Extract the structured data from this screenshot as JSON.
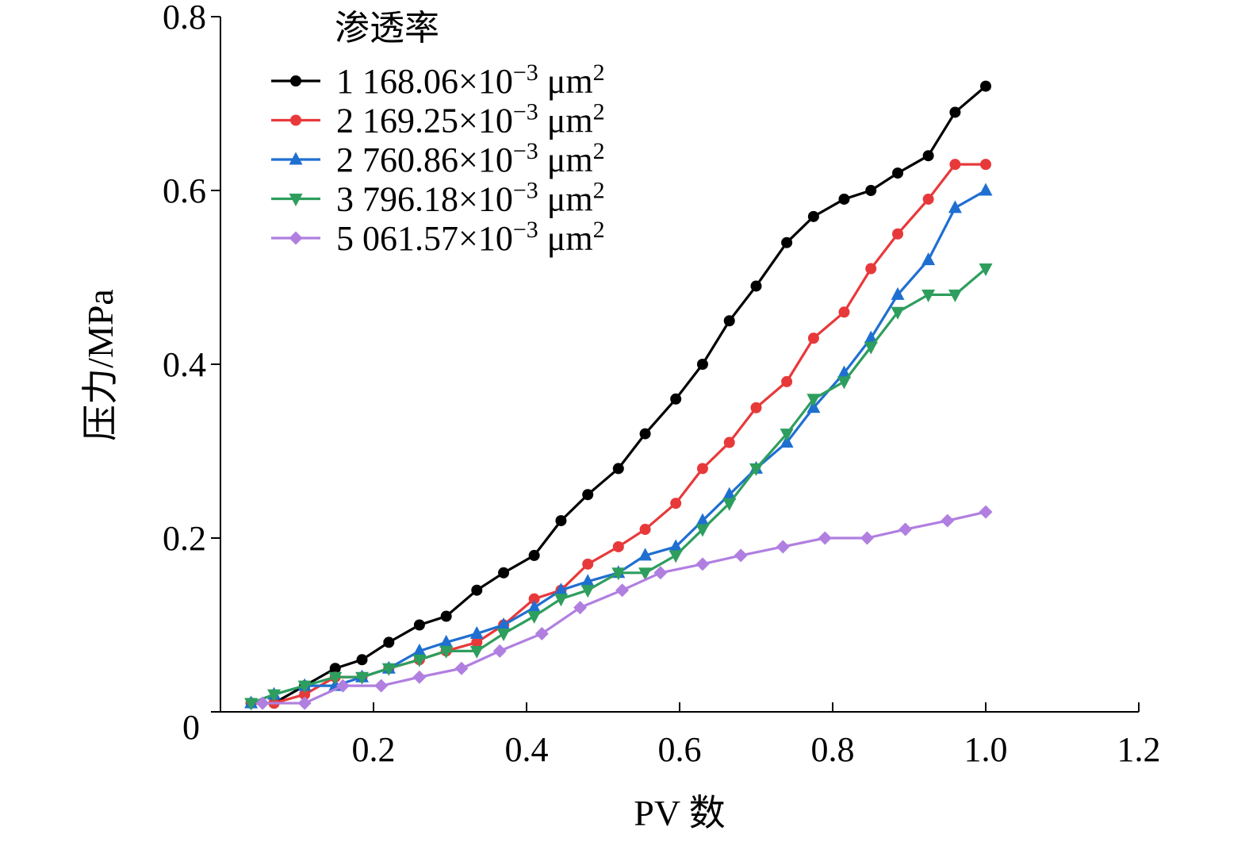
{
  "chart_data": {
    "type": "line",
    "xlabel": "PV 数",
    "ylabel": "压力/MPa",
    "xlim": [
      0,
      1.2
    ],
    "ylim": [
      0,
      0.8
    ],
    "xticks": [
      0.2,
      0.4,
      0.6,
      0.8,
      1.0,
      1.2
    ],
    "xtick_labels": [
      "0.2",
      "0.4",
      "0.6",
      "0.8",
      "1.0",
      "1.2"
    ],
    "yticks": [
      0,
      0.2,
      0.4,
      0.6,
      0.8
    ],
    "ytick_labels": [
      "0",
      "0.2",
      "0.4",
      "0.6",
      "0.8"
    ],
    "grid": false,
    "legend": {
      "title": "渗透率",
      "position": "top-left"
    },
    "series": [
      {
        "name": "1 168.06×10⁻³ μm²",
        "label_main": "1 168.06×10",
        "label_exp": "−3",
        "label_unit": " μm",
        "label_unit_exp": "2",
        "color": "#000000",
        "marker": "circle",
        "x": [
          0.04,
          0.07,
          0.11,
          0.15,
          0.185,
          0.22,
          0.26,
          0.295,
          0.335,
          0.37,
          0.41,
          0.445,
          0.48,
          0.52,
          0.555,
          0.595,
          0.63,
          0.665,
          0.7,
          0.74,
          0.775,
          0.815,
          0.85,
          0.885,
          0.925,
          0.96,
          1.0
        ],
        "y": [
          0.01,
          0.01,
          0.03,
          0.05,
          0.06,
          0.08,
          0.1,
          0.11,
          0.14,
          0.16,
          0.18,
          0.22,
          0.25,
          0.28,
          0.32,
          0.36,
          0.4,
          0.45,
          0.49,
          0.54,
          0.57,
          0.59,
          0.6,
          0.62,
          0.64,
          0.69,
          0.72
        ]
      },
      {
        "name": "2 169.25×10⁻³ μm²",
        "label_main": "2 169.25×10",
        "label_exp": "−3",
        "label_unit": " μm",
        "label_unit_exp": "2",
        "color": "#e8393a",
        "marker": "circle",
        "x": [
          0.04,
          0.07,
          0.11,
          0.15,
          0.185,
          0.22,
          0.26,
          0.295,
          0.335,
          0.37,
          0.41,
          0.445,
          0.48,
          0.52,
          0.555,
          0.595,
          0.63,
          0.665,
          0.7,
          0.74,
          0.775,
          0.815,
          0.85,
          0.885,
          0.925,
          0.96,
          1.0
        ],
        "y": [
          0.01,
          0.01,
          0.02,
          0.04,
          0.04,
          0.05,
          0.06,
          0.07,
          0.08,
          0.1,
          0.13,
          0.14,
          0.17,
          0.19,
          0.21,
          0.24,
          0.28,
          0.31,
          0.35,
          0.38,
          0.43,
          0.46,
          0.51,
          0.55,
          0.59,
          0.63,
          0.63
        ]
      },
      {
        "name": "2 760.86×10⁻³ μm²",
        "label_main": "2 760.86×10",
        "label_exp": "−3",
        "label_unit": " μm",
        "label_unit_exp": "2",
        "color": "#1f6fd1",
        "marker": "triangle-up",
        "x": [
          0.04,
          0.07,
          0.11,
          0.15,
          0.185,
          0.22,
          0.26,
          0.295,
          0.335,
          0.37,
          0.41,
          0.445,
          0.48,
          0.52,
          0.555,
          0.595,
          0.63,
          0.665,
          0.7,
          0.74,
          0.775,
          0.815,
          0.85,
          0.885,
          0.925,
          0.96,
          1.0
        ],
        "y": [
          0.01,
          0.02,
          0.03,
          0.03,
          0.04,
          0.05,
          0.07,
          0.08,
          0.09,
          0.1,
          0.12,
          0.14,
          0.15,
          0.16,
          0.18,
          0.19,
          0.22,
          0.25,
          0.28,
          0.31,
          0.35,
          0.39,
          0.43,
          0.48,
          0.52,
          0.58,
          0.6
        ]
      },
      {
        "name": "3 796.18×10⁻³ μm²",
        "label_main": "3 796.18×10",
        "label_exp": "−3",
        "label_unit": " μm",
        "label_unit_exp": "2",
        "color": "#2e9e5e",
        "marker": "triangle-down",
        "x": [
          0.04,
          0.07,
          0.11,
          0.15,
          0.185,
          0.22,
          0.26,
          0.295,
          0.335,
          0.37,
          0.41,
          0.445,
          0.48,
          0.52,
          0.555,
          0.595,
          0.63,
          0.665,
          0.7,
          0.74,
          0.775,
          0.815,
          0.85,
          0.885,
          0.925,
          0.96,
          1.0
        ],
        "y": [
          0.01,
          0.02,
          0.03,
          0.04,
          0.04,
          0.05,
          0.06,
          0.07,
          0.07,
          0.09,
          0.11,
          0.13,
          0.14,
          0.16,
          0.16,
          0.18,
          0.21,
          0.24,
          0.28,
          0.32,
          0.36,
          0.38,
          0.42,
          0.46,
          0.48,
          0.48,
          0.51
        ]
      },
      {
        "name": "5 061.57×10⁻³ μm²",
        "label_main": "5 061.57×10",
        "label_exp": "−3",
        "label_unit": " μm",
        "label_unit_exp": "2",
        "color": "#b07fe0",
        "marker": "diamond",
        "x": [
          0.055,
          0.11,
          0.16,
          0.21,
          0.26,
          0.315,
          0.365,
          0.42,
          0.47,
          0.525,
          0.575,
          0.63,
          0.68,
          0.735,
          0.79,
          0.845,
          0.895,
          0.95,
          1.0
        ],
        "y": [
          0.01,
          0.01,
          0.03,
          0.03,
          0.04,
          0.05,
          0.07,
          0.09,
          0.12,
          0.14,
          0.16,
          0.17,
          0.18,
          0.19,
          0.2,
          0.2,
          0.21,
          0.22,
          0.23
        ]
      }
    ]
  }
}
